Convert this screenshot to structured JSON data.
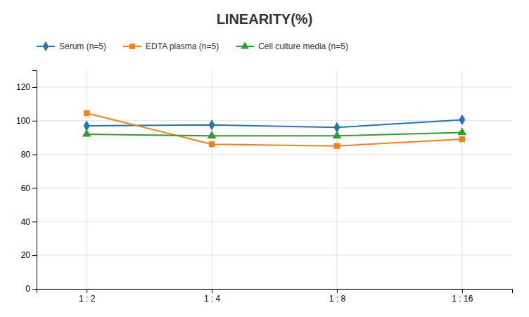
{
  "chart_data": {
    "type": "line",
    "title": "LINEARITY(%)",
    "categories": [
      "1 : 2",
      "1 : 4",
      "1 : 8",
      "1 : 16"
    ],
    "series": [
      {
        "name": "Serum (n=5)",
        "values": [
          97,
          97.5,
          96,
          100.5
        ],
        "marker": "diamond"
      },
      {
        "name": "EDTA plasma (n=5)",
        "values": [
          104.5,
          86,
          85,
          89
        ],
        "marker": "square"
      },
      {
        "name": "Cell culture media (n=5)",
        "values": [
          92,
          91,
          91,
          93
        ],
        "marker": "triangle"
      }
    ],
    "ylim": [
      0,
      130
    ],
    "yticks": [
      0,
      20,
      40,
      60,
      80,
      100,
      120
    ],
    "grid": true,
    "legend": "upper left"
  }
}
